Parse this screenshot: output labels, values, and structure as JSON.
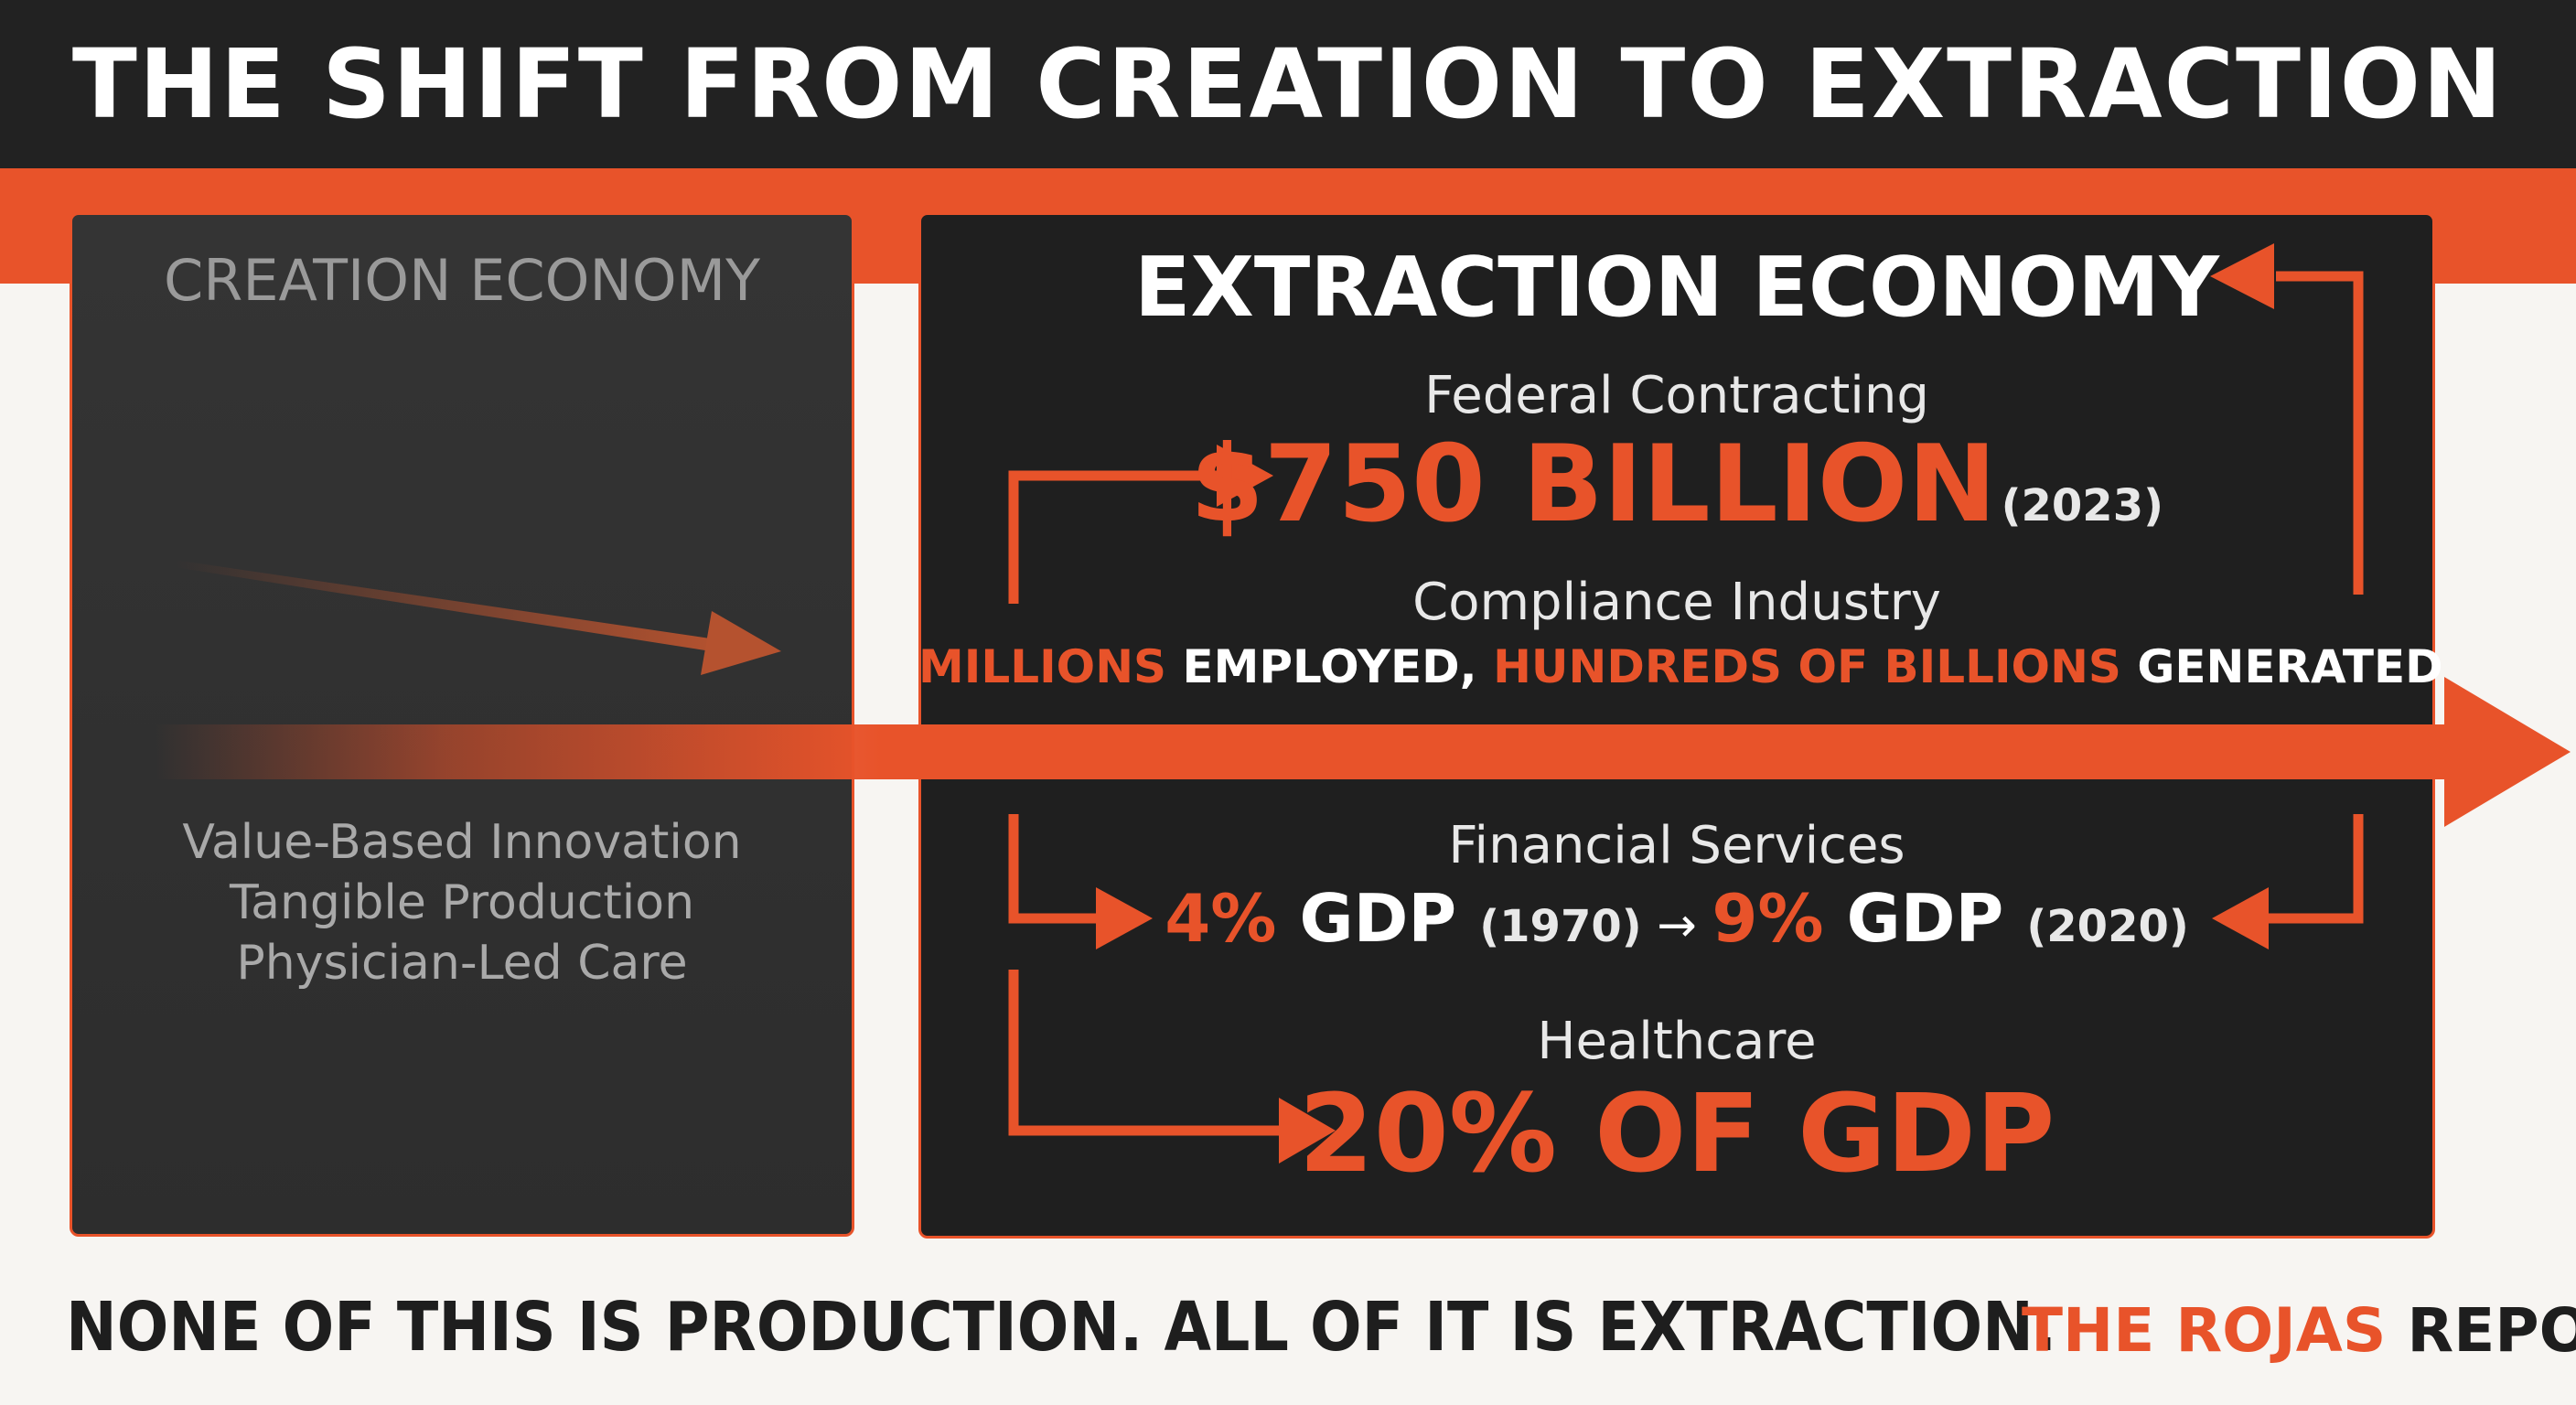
{
  "title": "THE SHIFT FROM CREATION TO EXTRACTION",
  "creation": {
    "heading": "CREATION ECONOMY",
    "items": [
      "Value-Based Innovation",
      "Tangible Production",
      "Physician-Led Care"
    ]
  },
  "extraction": {
    "heading": "EXTRACTION ECONOMY",
    "federal": {
      "label": "Federal Contracting",
      "value": "$750 BILLION",
      "year": "(2023)"
    },
    "compliance": {
      "label": "Compliance Industry",
      "part1": "MILLIONS",
      "part2": " EMPLOYED, ",
      "part3": "HUNDREDS OF BILLIONS",
      "part4": " GENERATED"
    },
    "financial": {
      "label": "Financial Services",
      "pct1": "4%",
      "gdp1": " GDP ",
      "year1": "(1970)",
      "arrow": " → ",
      "pct2": "9%",
      "gdp2": " GDP ",
      "year2": "(2020)"
    },
    "healthcare": {
      "label": "Healthcare",
      "value": "20% OF GDP"
    }
  },
  "footer": {
    "statement": "NONE OF THIS IS PRODUCTION. ALL OF IT IS EXTRACTION.",
    "brand_orange": "THE ROJAS",
    "brand_dark": " REPORT"
  },
  "colors": {
    "accent": "#e8532a",
    "dark": "#222222",
    "panel": "#1f1f1f"
  }
}
